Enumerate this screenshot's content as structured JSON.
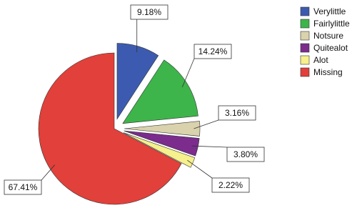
{
  "chart_data": {
    "type": "pie",
    "categories": [
      "Verylittle",
      "Fairlylittle",
      "Notsure",
      "Quitealot",
      "Alot",
      "Missing"
    ],
    "values": [
      9.18,
      14.24,
      3.16,
      3.8,
      2.22,
      67.41
    ],
    "value_labels": [
      "9.18%",
      "14.24%",
      "3.16%",
      "3.80%",
      "2.22%",
      "67.41%"
    ],
    "colors": [
      "#3c5bb0",
      "#3db54a",
      "#d9d2ad",
      "#7b2c8c",
      "#f6f08d",
      "#e2403a"
    ],
    "legend": "right"
  }
}
